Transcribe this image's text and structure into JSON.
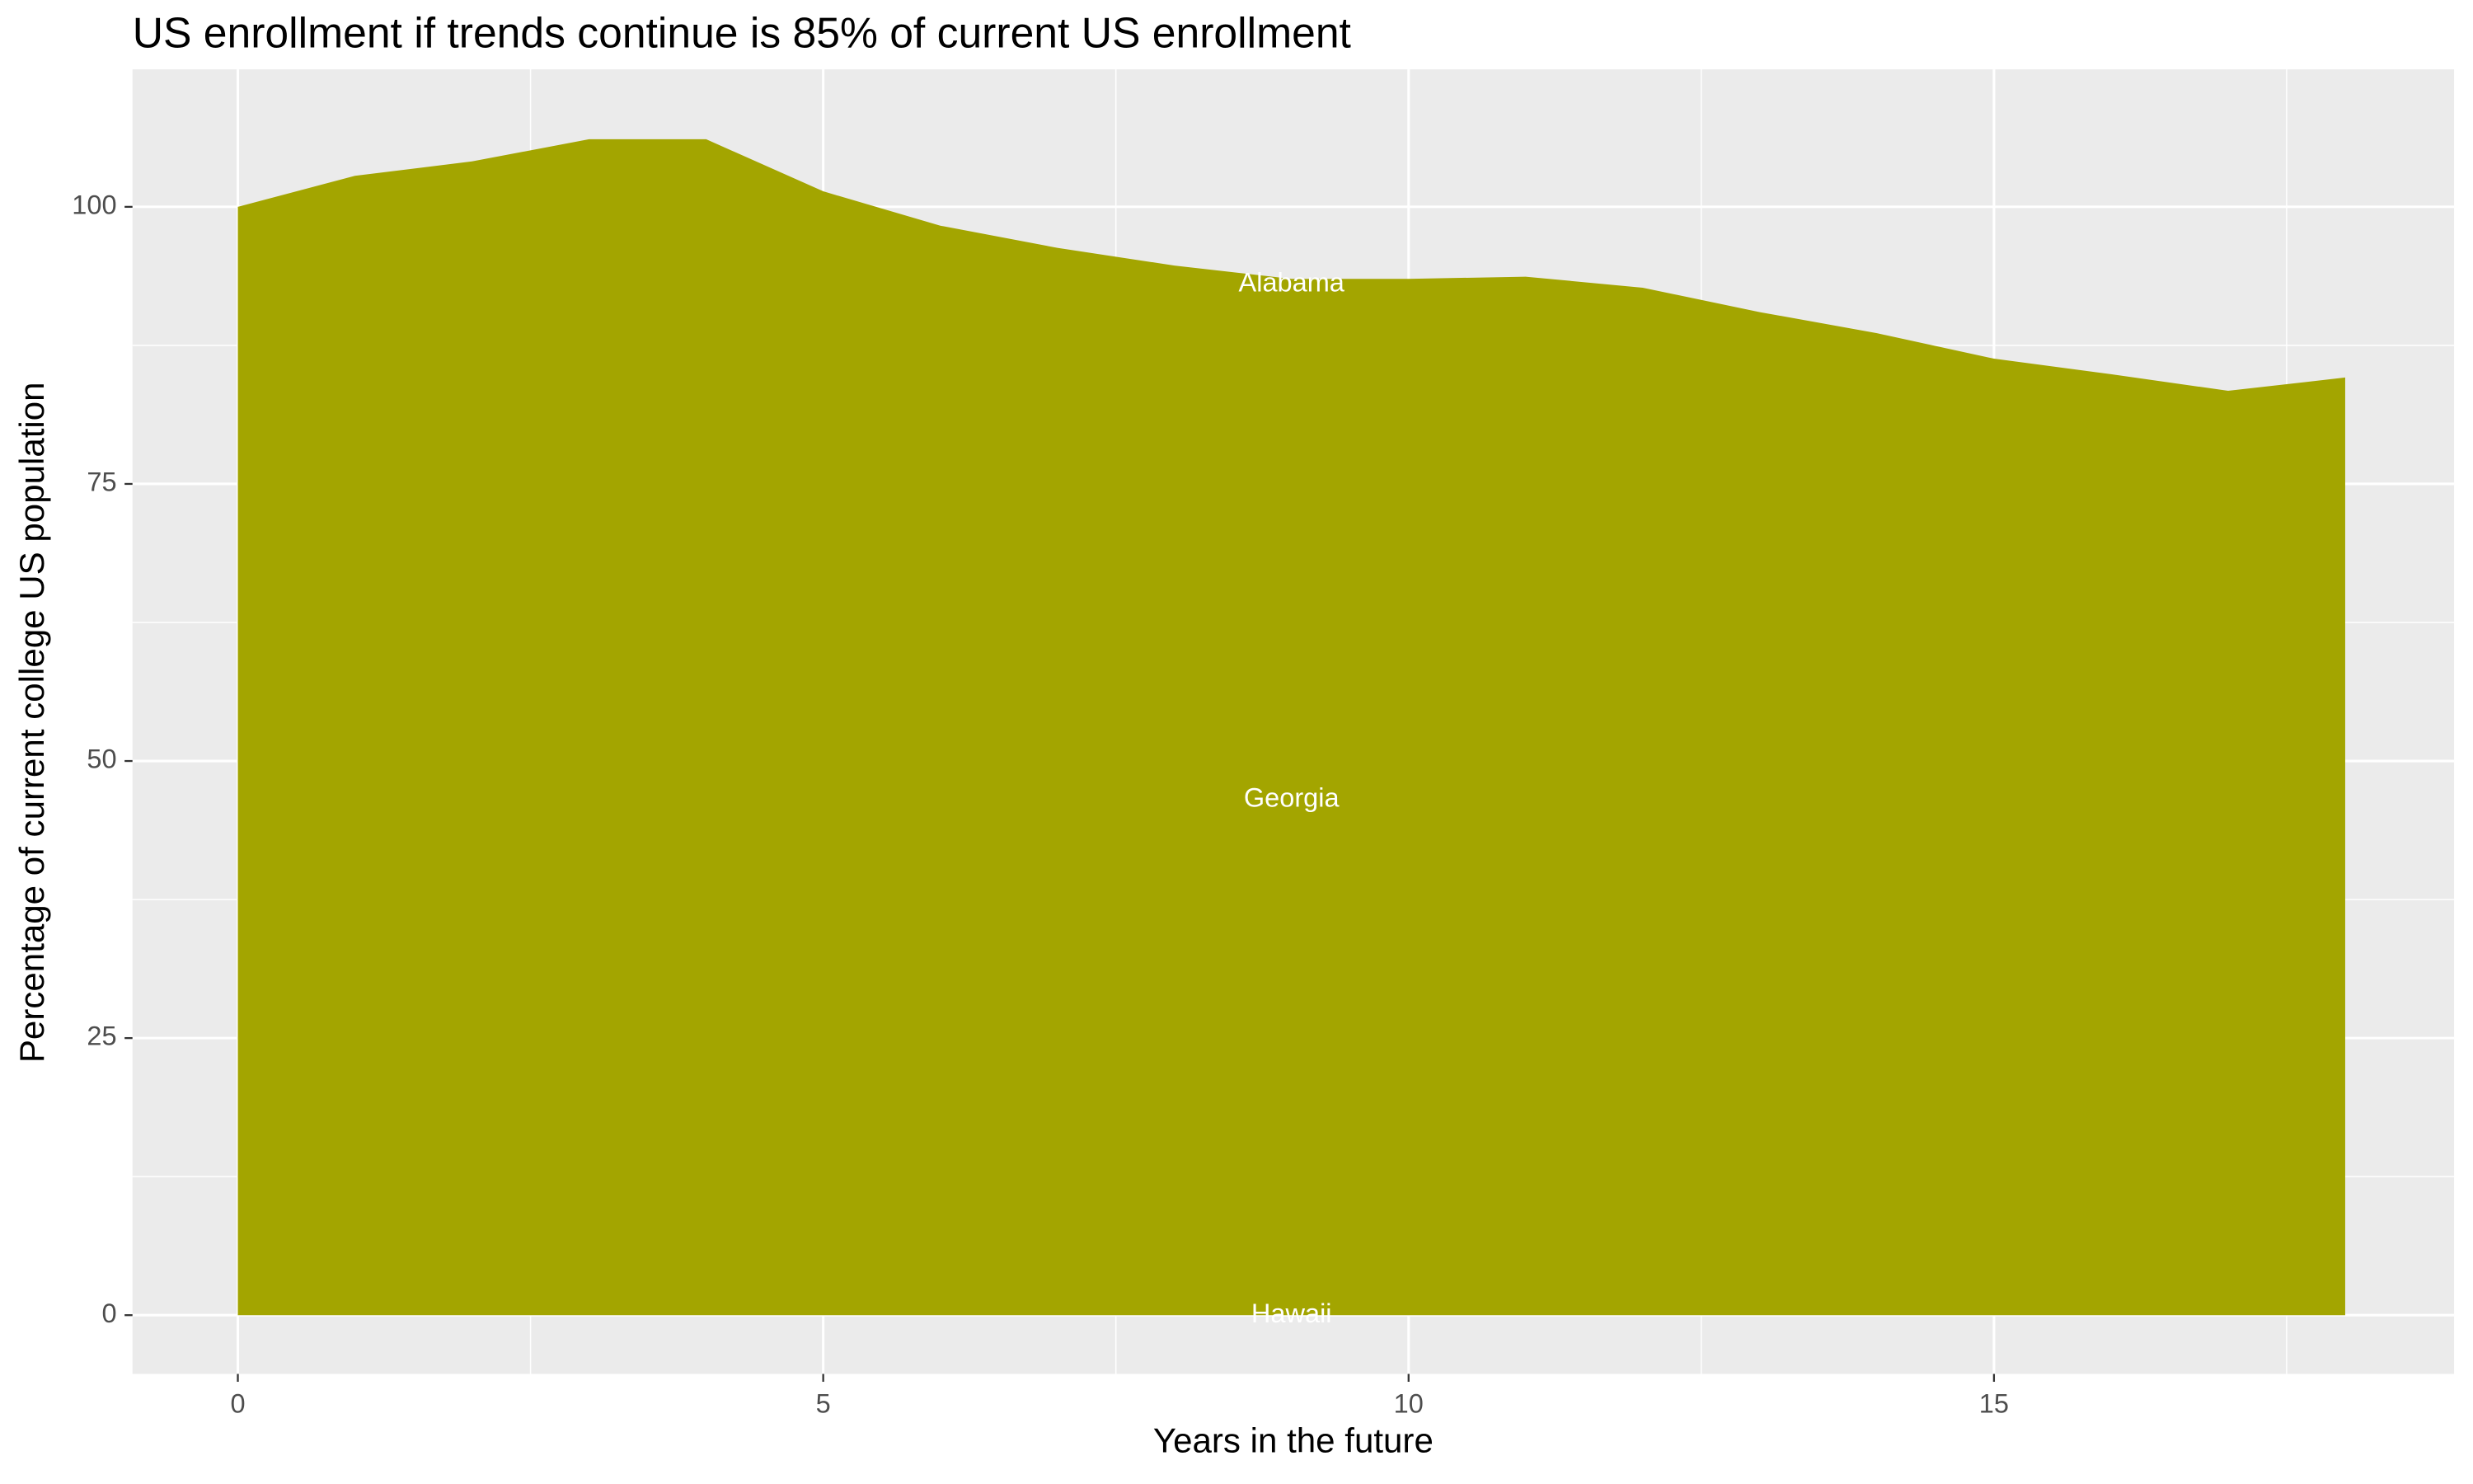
{
  "chart_data": {
    "type": "area",
    "title": "US enrollment if trends continue is 85% of current US enrollment",
    "xlabel": "Years in the future",
    "ylabel": "Percentage of current college US population",
    "x": [
      0,
      1,
      2,
      3,
      4,
      5,
      6,
      7,
      8,
      9,
      10,
      11,
      12,
      13,
      14,
      15,
      16,
      17,
      18
    ],
    "values": [
      100,
      102.8,
      104.1,
      106.1,
      106.1,
      101.4,
      98.3,
      96.3,
      94.7,
      93.5,
      93.5,
      93.7,
      92.7,
      90.5,
      88.6,
      86.3,
      84.9,
      83.4,
      84.6
    ],
    "color": "#a3a500",
    "xlim": [
      -0.9,
      18.93
    ],
    "ylim": [
      -5.3,
      112.4
    ],
    "xticks": [
      0,
      5,
      10,
      15
    ],
    "yticks": [
      0,
      25,
      50,
      75,
      100
    ],
    "xminorticks": [
      2.5,
      7.5,
      12.5,
      17.5
    ],
    "yminorticks": [
      12.5,
      37.5,
      62.5,
      87.5
    ],
    "grid": true,
    "annotations": [
      {
        "text": "Alabama",
        "x": 9,
        "y": 93
      },
      {
        "text": "Georgia",
        "x": 9,
        "y": 46.5
      },
      {
        "text": "Hawaii",
        "x": 9,
        "y": 0
      }
    ]
  }
}
